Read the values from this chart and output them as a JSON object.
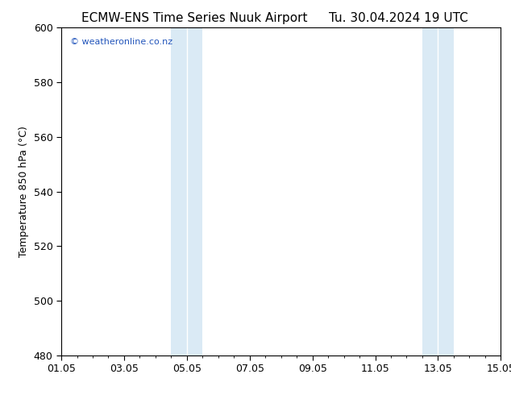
{
  "title_left": "ECMW-ENS Time Series Nuuk Airport",
  "title_right": "Tu. 30.04.2024 19 UTC",
  "ylabel": "Temperature 850 hPa (°C)",
  "ylim": [
    480,
    600
  ],
  "yticks": [
    480,
    500,
    520,
    540,
    560,
    580,
    600
  ],
  "x_tick_labels": [
    "01.05",
    "03.05",
    "05.05",
    "07.05",
    "09.05",
    "11.05",
    "13.05",
    "15.05"
  ],
  "x_tick_positions": [
    0,
    2,
    4,
    6,
    8,
    10,
    12,
    14
  ],
  "xlim": [
    0,
    14
  ],
  "shade_bands": [
    {
      "xmin": 3.5,
      "xmax": 4.0,
      "color": "#daeaf5"
    },
    {
      "xmin": 4.0,
      "xmax": 4.5,
      "color": "#daeaf5"
    },
    {
      "xmin": 11.5,
      "xmax": 12.0,
      "color": "#daeaf5"
    },
    {
      "xmin": 12.0,
      "xmax": 12.5,
      "color": "#daeaf5"
    }
  ],
  "watermark": "© weatheronline.co.nz",
  "watermark_color": "#2255bb",
  "bg_color": "#ffffff",
  "plot_bg_color": "#ffffff",
  "title_fontsize": 11,
  "tick_fontsize": 9,
  "label_fontsize": 9
}
